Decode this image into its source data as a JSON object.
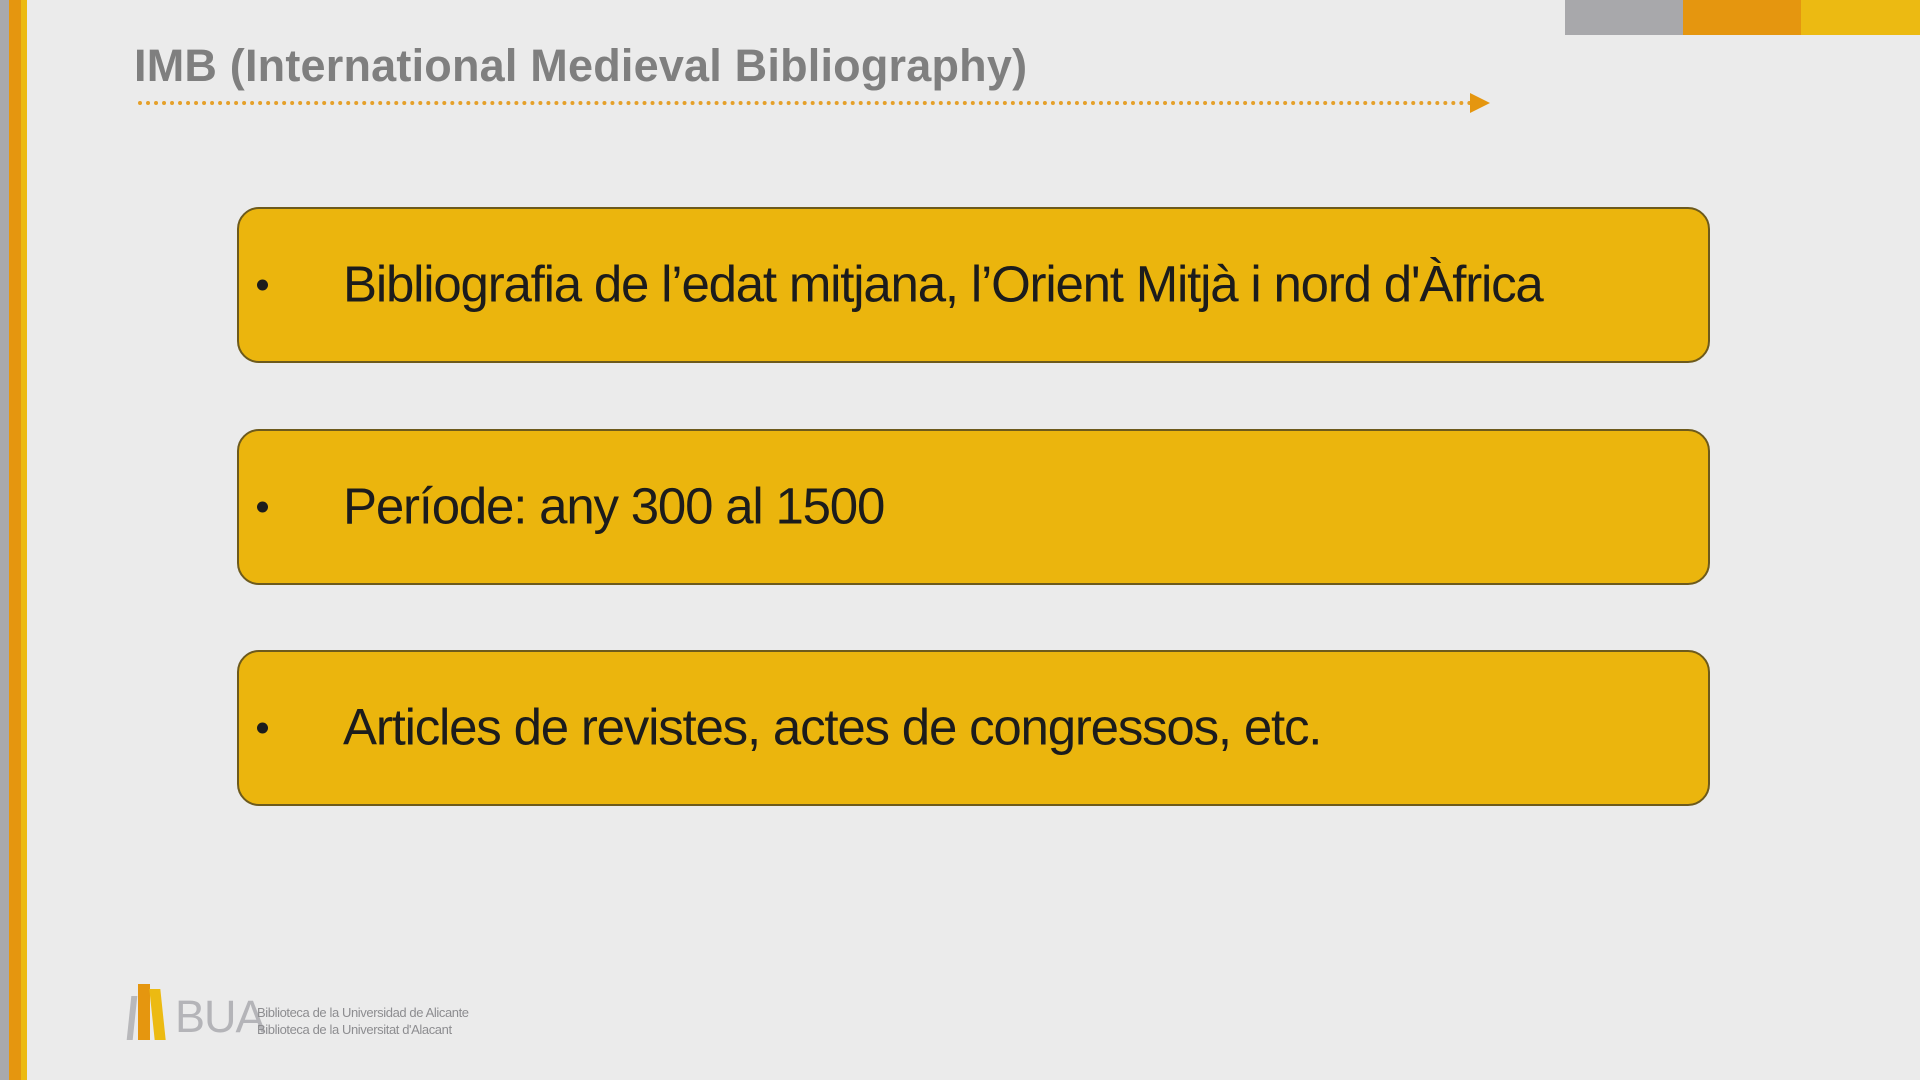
{
  "title": "IMB (International Medieval Bibliography)",
  "items": [
    {
      "text": "Bibliografia de l’edat mitjana, l’Orient Mitjà i nord d'Àfrica"
    },
    {
      "text": "Període: any 300 al 1500"
    },
    {
      "text": "Articles de revistes, actes de congressos, etc."
    }
  ],
  "logo": {
    "mark": "BUA",
    "line1": "Biblioteca de la Universidad de Alicante",
    "line2": "Biblioteca de la Universitat d'Alacant"
  },
  "colors": {
    "accent_yellow": "#ebb50d",
    "accent_orange": "#e5960f",
    "gray": "#a8a8ab",
    "background": "#ebebeb"
  }
}
